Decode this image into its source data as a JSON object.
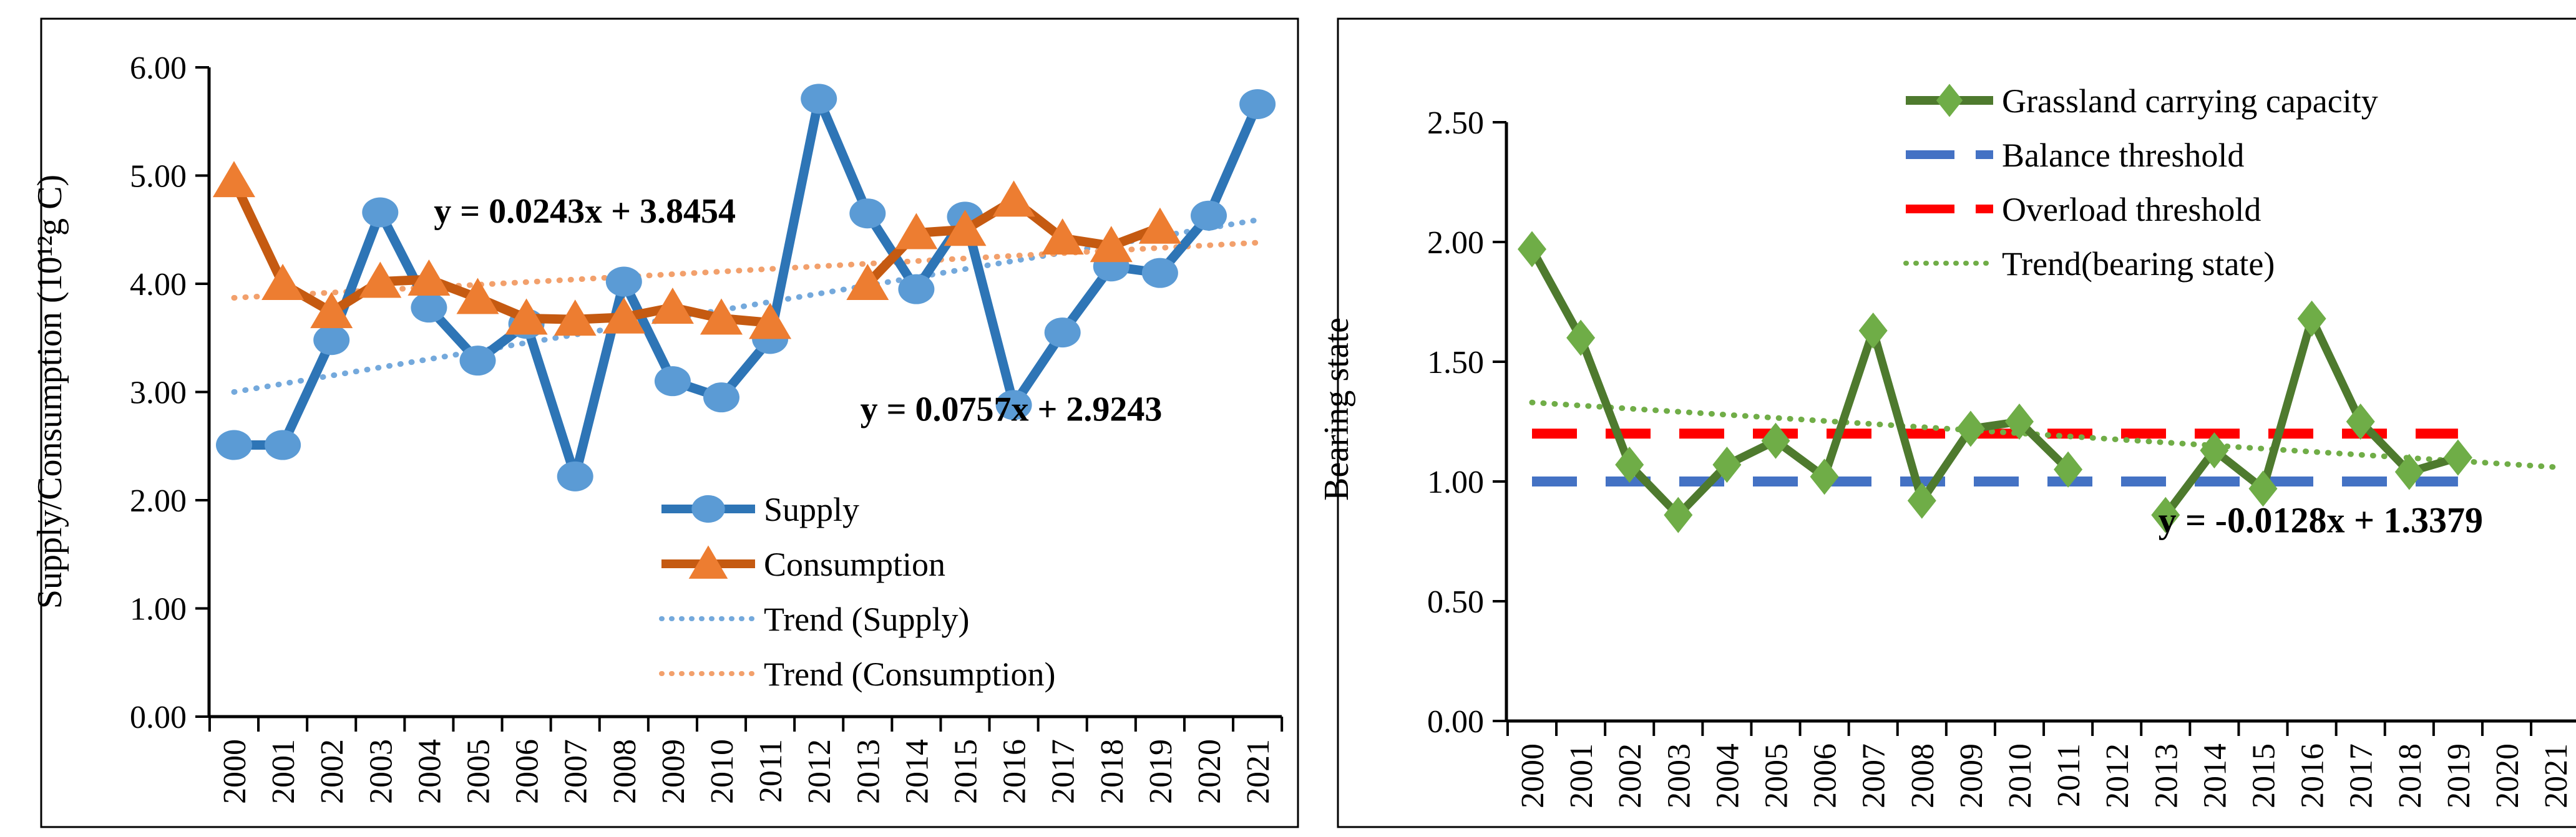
{
  "figure": {
    "background": "#ffffff",
    "border_color": "#000000",
    "axis_color": "#000000"
  },
  "chart_data": [
    {
      "type": "line",
      "panel": "left",
      "title": "",
      "xlabel": "",
      "ylabel": "Supply/Consumption (10¹²g C)",
      "ylim": [
        0,
        6
      ],
      "ytick_labels": [
        "0.00",
        "1.00",
        "2.00",
        "3.00",
        "4.00",
        "5.00",
        "6.00"
      ],
      "grid": false,
      "categories": [
        "2000",
        "2001",
        "2002",
        "2003",
        "2004",
        "2005",
        "2006",
        "2007",
        "2008",
        "2009",
        "2010",
        "2011",
        "2012",
        "2013",
        "2014",
        "2015",
        "2016",
        "2017",
        "2018",
        "2019",
        "2020",
        "2021"
      ],
      "series": [
        {
          "name": "Supply",
          "kind": "line",
          "marker": "circle",
          "line_color": "#2E75B6",
          "marker_color": "#5B9BD5",
          "values": [
            2.51,
            2.51,
            3.48,
            4.66,
            3.78,
            3.29,
            3.63,
            2.22,
            4.02,
            3.1,
            2.95,
            3.49,
            5.71,
            4.65,
            3.95,
            4.62,
            2.88,
            3.55,
            4.16,
            4.1,
            4.63,
            5.66
          ]
        },
        {
          "name": "Consumption",
          "kind": "line",
          "marker": "triangle",
          "line_color": "#C55A11",
          "marker_color": "#ED7D31",
          "values": [
            4.95,
            4.0,
            3.74,
            4.02,
            4.04,
            3.87,
            3.68,
            3.67,
            3.69,
            3.78,
            3.68,
            3.64,
            null,
            4.0,
            4.47,
            4.5,
            4.77,
            4.42,
            4.35,
            4.52,
            null,
            null
          ]
        },
        {
          "name": "Trend (Supply)",
          "kind": "trend",
          "style": "dotted",
          "color": "#74A9DC",
          "x_span": [
            0,
            21
          ],
          "value_start": 3.0,
          "value_end": 4.59,
          "equation": "y = 0.0757x + 2.9243"
        },
        {
          "name": "Trend (Consumption)",
          "kind": "trend",
          "style": "dotted",
          "color": "#F2A06C",
          "x_span": [
            0,
            21
          ],
          "value_start": 3.87,
          "value_end": 4.38,
          "equation": "y = 0.0243x + 3.8454"
        }
      ],
      "annotations": [
        {
          "id": "consumption-trend-equation",
          "text": "y = 0.0243x + 3.8454",
          "color": "#C55A11",
          "anchor_index": 4.1,
          "anchor_value": 4.68
        },
        {
          "id": "supply-trend-equation",
          "text": "y = 0.0757x + 2.9243",
          "color": "#2E75B6",
          "anchor_index": 12.85,
          "anchor_value": 2.85
        }
      ],
      "legend": {
        "position": "inside-bottom-center",
        "items": [
          "Supply",
          "Consumption",
          "Trend (Supply)",
          "Trend (Consumption)"
        ]
      }
    },
    {
      "type": "line",
      "panel": "right",
      "title": "",
      "xlabel": "",
      "ylabel": "Bearing state",
      "ylim": [
        0,
        2.5
      ],
      "ytick_labels": [
        "0.00",
        "0.50",
        "1.00",
        "1.50",
        "2.00",
        "2.50"
      ],
      "grid": false,
      "categories": [
        "2000",
        "2001",
        "2002",
        "2003",
        "2004",
        "2005",
        "2006",
        "2007",
        "2008",
        "2009",
        "2010",
        "2011",
        "2012",
        "2013",
        "2014",
        "2015",
        "2016",
        "2017",
        "2018",
        "2019",
        "2020",
        "2021"
      ],
      "series": [
        {
          "name": "Grassland carrying capacity",
          "kind": "line",
          "marker": "diamond",
          "line_color": "#4E7A2E",
          "marker_color": "#6FAD47",
          "values": [
            1.97,
            1.6,
            1.07,
            0.86,
            1.07,
            1.17,
            1.02,
            1.63,
            0.92,
            1.22,
            1.25,
            1.05,
            null,
            0.86,
            1.13,
            0.97,
            1.68,
            1.25,
            1.04,
            1.1,
            null,
            null
          ]
        },
        {
          "name": "Balance threshold",
          "kind": "threshold",
          "style": "dashed",
          "color": "#4472C4",
          "value": 1.0,
          "x_span": [
            0,
            19
          ]
        },
        {
          "name": "Overload threshold",
          "kind": "threshold",
          "style": "dashed",
          "color": "#FF0000",
          "value": 1.2,
          "x_span": [
            0,
            19
          ]
        },
        {
          "name": "Trend(bearing state)",
          "kind": "trend",
          "style": "dotted",
          "color": "#70AD47",
          "x_span": [
            0,
            21
          ],
          "value_start": 1.33,
          "value_end": 1.06,
          "equation": "y = -0.0128x + 1.3379"
        }
      ],
      "annotations": [
        {
          "id": "bearing-trend-equation",
          "text": "y = -0.0128x + 1.3379",
          "color": "#538135",
          "anchor_index": 12.85,
          "anchor_value": 0.84
        }
      ],
      "legend": {
        "position": "inside-top-right",
        "items": [
          "Grassland carrying capacity",
          "Balance threshold",
          "Overload threshold",
          "Trend(bearing state)"
        ]
      }
    }
  ]
}
